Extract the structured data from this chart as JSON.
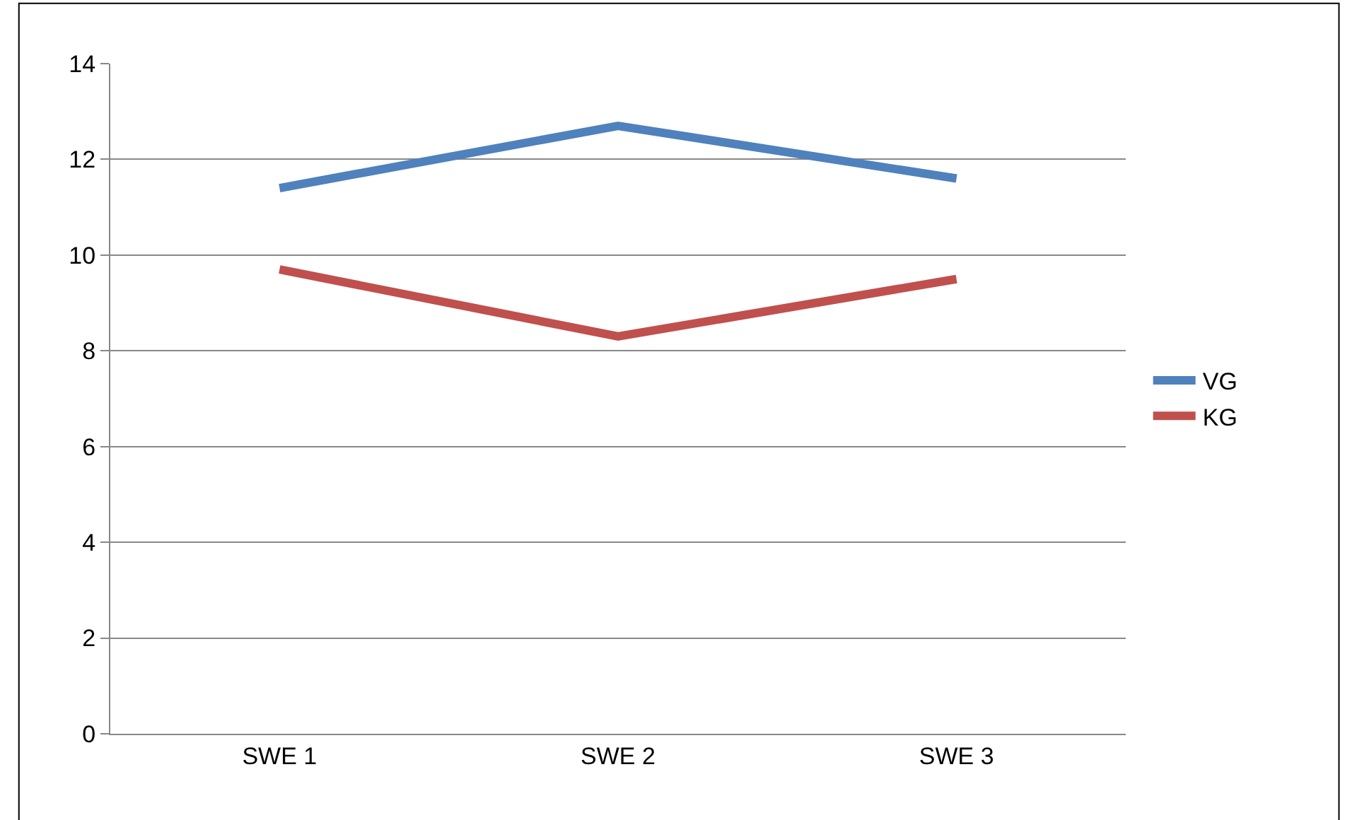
{
  "chart_data": {
    "type": "line",
    "categories": [
      "SWE 1",
      "SWE 2",
      "SWE 3"
    ],
    "series": [
      {
        "name": "VG",
        "color": "#4f81bd",
        "values": [
          11.4,
          12.7,
          11.6
        ]
      },
      {
        "name": "KG",
        "color": "#c0504d",
        "values": [
          9.7,
          8.3,
          9.5
        ]
      }
    ],
    "ylim": [
      0,
      14
    ],
    "yticks": [
      0,
      2,
      4,
      6,
      8,
      10,
      12,
      14
    ],
    "grid": "y",
    "legend": "right",
    "marker": "none",
    "line_style": "solid"
  }
}
